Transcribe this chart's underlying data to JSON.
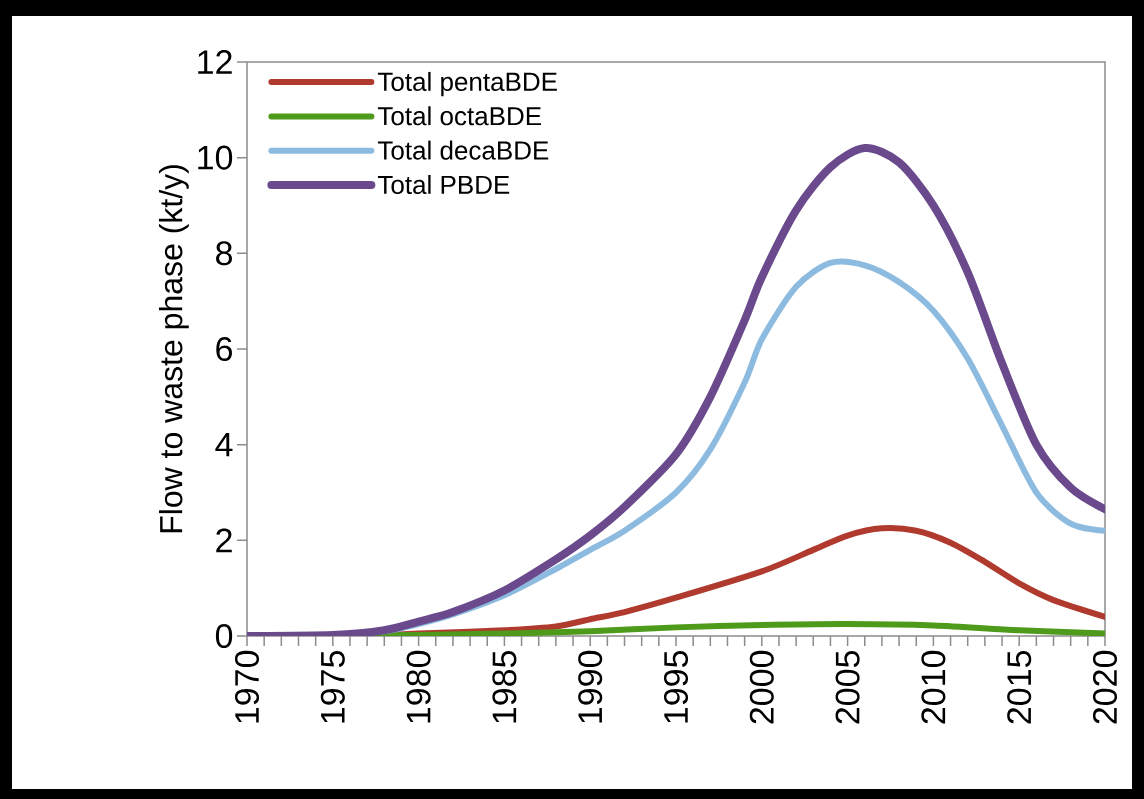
{
  "chart_data": {
    "type": "line",
    "ylabel": "Flow to waste phase (kt/y)",
    "xlim": [
      1970,
      2020
    ],
    "xticks": [
      1970,
      1975,
      1980,
      1985,
      1990,
      1995,
      2000,
      2005,
      2010,
      2015,
      2020
    ],
    "ylim": [
      0,
      12
    ],
    "yticks": [
      0,
      2,
      4,
      6,
      8,
      10,
      12
    ],
    "grid": false,
    "legend": "top left",
    "marker": "none",
    "line_style": "solid",
    "series": [
      {
        "name": "Total pentaBDE",
        "color": "#b03a2e",
        "x": [
          1970,
          1978,
          1980,
          1985,
          1988,
          1990,
          1992,
          1995,
          2000,
          2003,
          2005,
          2007,
          2009,
          2011,
          2013,
          2015,
          2017,
          2020
        ],
        "values": [
          0,
          0.03,
          0.05,
          0.12,
          0.2,
          0.35,
          0.5,
          0.8,
          1.35,
          1.8,
          2.1,
          2.25,
          2.2,
          1.95,
          1.55,
          1.1,
          0.75,
          0.4
        ]
      },
      {
        "name": "Total octaBDE",
        "color": "#4e9a1a",
        "x": [
          1970,
          1980,
          1985,
          1990,
          1995,
          2000,
          2005,
          2010,
          2015,
          2020
        ],
        "values": [
          0,
          0.02,
          0.05,
          0.1,
          0.18,
          0.23,
          0.25,
          0.22,
          0.12,
          0.05
        ]
      },
      {
        "name": "Total decaBDE",
        "color": "#8dbbe0",
        "x": [
          1970,
          1975,
          1978,
          1980,
          1982,
          1985,
          1988,
          1990,
          1992,
          1995,
          1997,
          1999,
          2000,
          2002,
          2004,
          2006,
          2008,
          2010,
          2012,
          2014,
          2016,
          2018,
          2020
        ],
        "values": [
          0,
          0.02,
          0.1,
          0.25,
          0.45,
          0.85,
          1.4,
          1.8,
          2.2,
          3.0,
          3.9,
          5.3,
          6.2,
          7.3,
          7.8,
          7.75,
          7.4,
          6.8,
          5.8,
          4.4,
          3.0,
          2.35,
          2.2
        ]
      },
      {
        "name": "Total PBDE",
        "color": "#6a4a8c",
        "x": [
          1970,
          1975,
          1978,
          1980,
          1982,
          1985,
          1988,
          1990,
          1992,
          1995,
          1997,
          1999,
          2000,
          2002,
          2004,
          2006,
          2008,
          2010,
          2012,
          2014,
          2016,
          2018,
          2020
        ],
        "values": [
          0,
          0.02,
          0.12,
          0.3,
          0.5,
          0.95,
          1.6,
          2.1,
          2.7,
          3.8,
          5.0,
          6.6,
          7.5,
          8.9,
          9.8,
          10.2,
          9.9,
          9.0,
          7.6,
          5.7,
          4.0,
          3.1,
          2.65
        ]
      }
    ]
  }
}
